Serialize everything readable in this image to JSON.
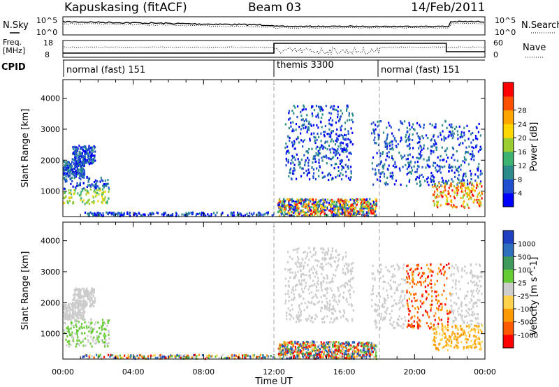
{
  "header": {
    "station": "Kapuskasing (fitACF)",
    "beam": "Beam 03",
    "date": "14/Feb/2011"
  },
  "nsky_panel": {
    "left_label": "N.Sky",
    "right_label": "N.Search",
    "ticks_left": [
      "10^5",
      "10^0"
    ],
    "ticks_right": [
      "10^5",
      "10^0"
    ]
  },
  "freq_panel": {
    "left_label_line1": "Freq.",
    "left_label_line2": "[MHz]",
    "right_label": "Nave",
    "ticks_left": [
      "18",
      "8"
    ],
    "ticks_right": [
      "60",
      "0"
    ]
  },
  "cpid": {
    "label": "CPID",
    "segments": [
      {
        "label": "normal (fast) 151",
        "start_hour": 0
      },
      {
        "label": "themis 3300",
        "start_hour": 12
      },
      {
        "label": "normal (fast) 151",
        "start_hour": 18
      }
    ]
  },
  "chart_data": [
    {
      "type": "heatmap",
      "title": "",
      "xlabel": "",
      "ylabel": "Slant Range [km]",
      "x_ticks": [
        "00:00",
        "04:00",
        "08:00",
        "12:00",
        "16:00",
        "20:00",
        "00:00"
      ],
      "y_ticks": [
        1000,
        2000,
        3000,
        4000
      ],
      "xlim_hours": [
        0,
        24
      ],
      "ylim": [
        180,
        4600
      ],
      "colorbar": {
        "label": "Power [dB]",
        "ticks": [
          "4",
          "8",
          "12",
          "16",
          "20",
          "24",
          "28"
        ],
        "colors": [
          "#0000ff",
          "#1f4fd0",
          "#2b8a8a",
          "#3cb371",
          "#9acd32",
          "#ffd700",
          "#ffa500",
          "#ff5000",
          "#ff0000"
        ]
      }
    },
    {
      "type": "heatmap",
      "title": "",
      "xlabel": "Time UT",
      "ylabel": "Slant Range [km]",
      "x_ticks": [
        "00:00",
        "04:00",
        "08:00",
        "12:00",
        "16:00",
        "20:00",
        "00:00"
      ],
      "y_ticks": [
        1000,
        2000,
        3000,
        4000
      ],
      "xlim_hours": [
        0,
        24
      ],
      "ylim": [
        180,
        4600
      ],
      "colorbar": {
        "label": "Velocity [m s^-1]",
        "ticks": [
          "1000",
          "500",
          "100",
          "25",
          "-25",
          "-100",
          "-500",
          "-1000"
        ],
        "colors": [
          "#1e3fbf",
          "#2f6fbf",
          "#3d9a5a",
          "#66cc33",
          "#cccccc",
          "#ffd24d",
          "#ff9900",
          "#ff5a00",
          "#ff0000"
        ]
      }
    }
  ],
  "colors": {
    "axes": "#000000",
    "boundary_dash": "#a0a0a0"
  }
}
